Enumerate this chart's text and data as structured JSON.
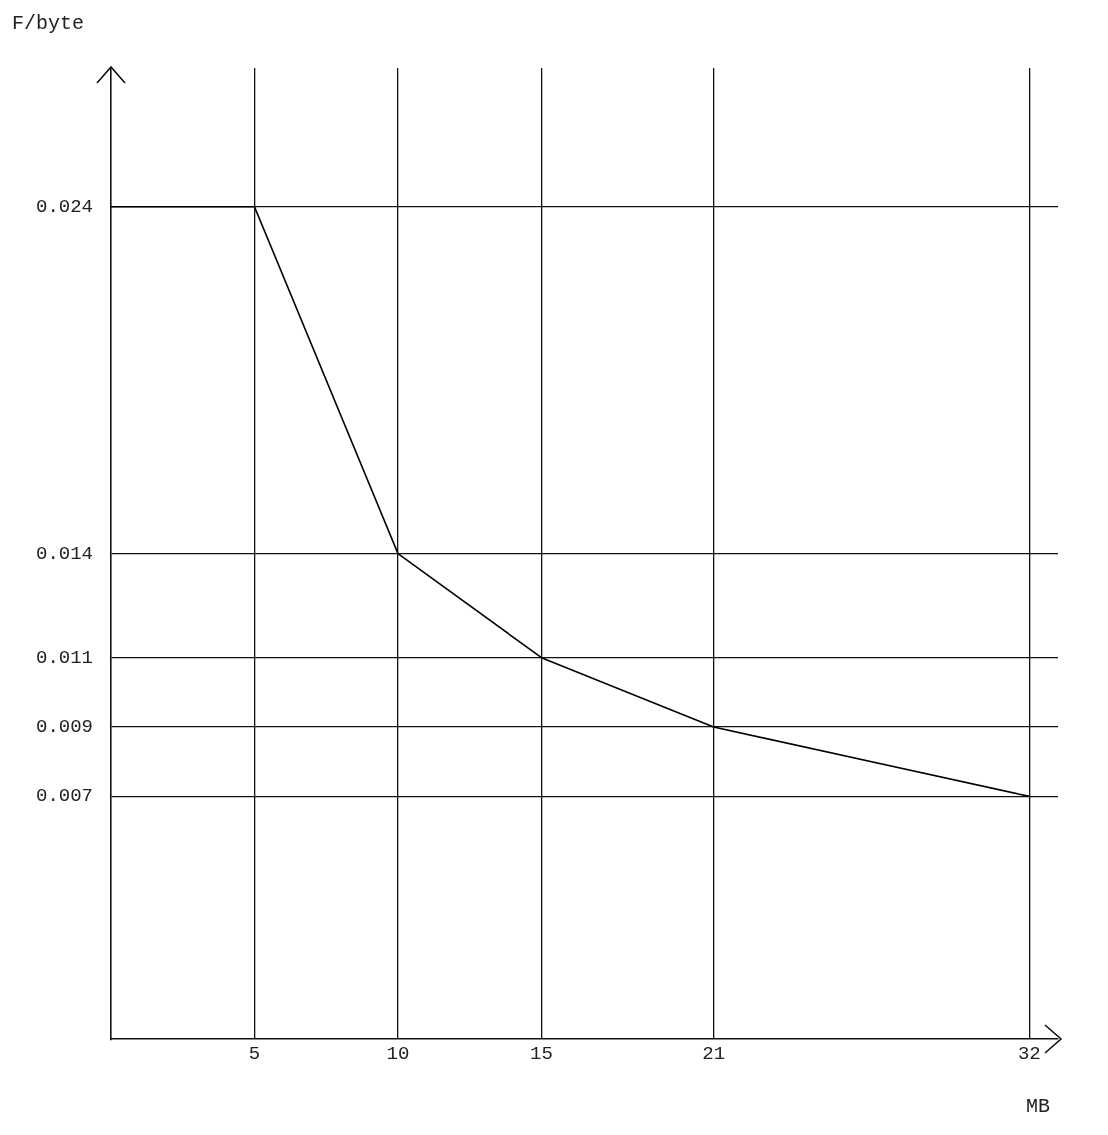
{
  "chart_data": {
    "type": "line",
    "xlabel": "MB",
    "ylabel": "F/byte",
    "x": [
      0,
      5,
      10,
      15,
      21,
      32
    ],
    "values": [
      0.024,
      0.024,
      0.014,
      0.011,
      0.009,
      0.007
    ],
    "color": "#000000",
    "xlim": [
      0,
      33
    ],
    "ylim": [
      0,
      0.028
    ],
    "xticks": [
      5,
      10,
      15,
      21,
      32
    ],
    "yticks": [
      0.007,
      0.009,
      0.011,
      0.014,
      0.024
    ],
    "grid": true,
    "marker": "none",
    "line_style": "solid",
    "legend": false
  }
}
